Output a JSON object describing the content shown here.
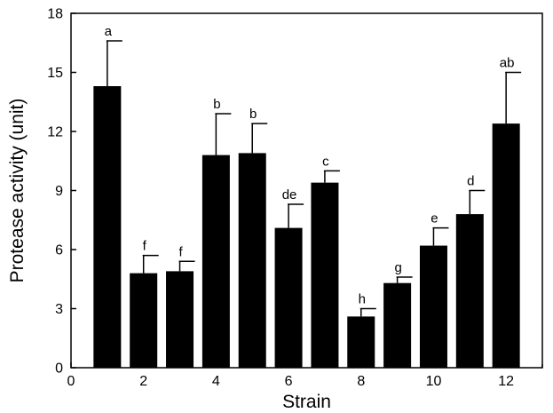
{
  "chart_data": {
    "type": "bar",
    "title": "",
    "xlabel": "Strain",
    "ylabel": "Protease activity (unit)",
    "xlim": [
      0,
      13
    ],
    "ylim": [
      0,
      18
    ],
    "x_ticks": [
      0,
      2,
      4,
      6,
      8,
      10,
      12
    ],
    "y_ticks": [
      0,
      3,
      6,
      9,
      12,
      15,
      18
    ],
    "bar_color": "#000000",
    "grid": false,
    "legend": "none",
    "bars": [
      {
        "x": 1,
        "value": 14.3,
        "error": 2.3,
        "label": "a"
      },
      {
        "x": 2,
        "value": 4.8,
        "error": 0.9,
        "label": "f"
      },
      {
        "x": 3,
        "value": 4.9,
        "error": 0.5,
        "label": "f"
      },
      {
        "x": 4,
        "value": 10.8,
        "error": 2.1,
        "label": "b"
      },
      {
        "x": 5,
        "value": 10.9,
        "error": 1.5,
        "label": "b"
      },
      {
        "x": 6,
        "value": 7.1,
        "error": 1.2,
        "label": "de"
      },
      {
        "x": 7,
        "value": 9.4,
        "error": 0.6,
        "label": "c"
      },
      {
        "x": 8,
        "value": 2.6,
        "error": 0.4,
        "label": "h"
      },
      {
        "x": 9,
        "value": 4.3,
        "error": 0.3,
        "label": "g"
      },
      {
        "x": 10,
        "value": 6.2,
        "error": 0.9,
        "label": "e"
      },
      {
        "x": 11,
        "value": 7.8,
        "error": 1.2,
        "label": "d"
      },
      {
        "x": 12,
        "value": 12.4,
        "error": 2.6,
        "label": "ab"
      }
    ]
  }
}
